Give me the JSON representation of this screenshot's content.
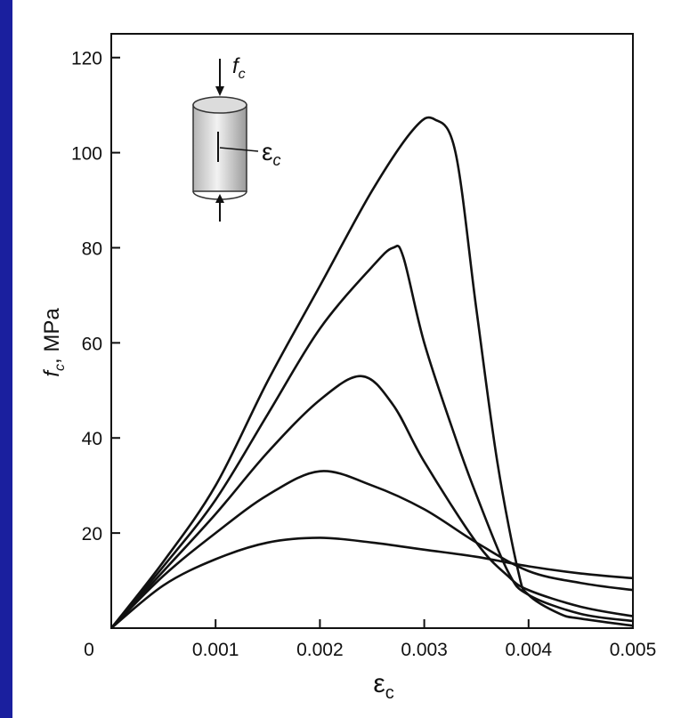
{
  "colors": {
    "background": "#1a1f9e",
    "paper": "#ffffff",
    "ink": "#111111"
  },
  "chart_data": {
    "type": "line",
    "title": "",
    "xlabel": "ε",
    "xlabel_sub": "c",
    "ylabel_main": "f",
    "ylabel_sub": "c",
    "ylabel_unit": ", MPa",
    "xlim": [
      0,
      0.005
    ],
    "ylim": [
      0,
      125
    ],
    "x_ticks": [
      0.001,
      0.002,
      0.003,
      0.004,
      0.005
    ],
    "x_tick_labels": [
      "0.001",
      "0.002",
      "0.003",
      "0.004",
      "0.005"
    ],
    "y_ticks": [
      20,
      40,
      60,
      80,
      100,
      120
    ],
    "y_tick_labels": [
      "20",
      "40",
      "60",
      "80",
      "100",
      "120"
    ],
    "origin_label": "0",
    "grid": false,
    "legend": "none",
    "series": [
      {
        "values": [
          [
            0,
            0
          ],
          [
            0.0005,
            9
          ],
          [
            0.001,
            14.5
          ],
          [
            0.0015,
            18
          ],
          [
            0.002,
            19
          ],
          [
            0.0025,
            18
          ],
          [
            0.003,
            16.5
          ],
          [
            0.0035,
            15
          ],
          [
            0.004,
            13
          ],
          [
            0.0045,
            11.5
          ],
          [
            0.005,
            10.5
          ]
        ]
      },
      {
        "values": [
          [
            0,
            0
          ],
          [
            0.0005,
            11
          ],
          [
            0.001,
            20
          ],
          [
            0.0015,
            28
          ],
          [
            0.002,
            33
          ],
          [
            0.0025,
            30
          ],
          [
            0.003,
            25
          ],
          [
            0.0035,
            18
          ],
          [
            0.004,
            12
          ],
          [
            0.0045,
            9.5
          ],
          [
            0.005,
            8
          ]
        ]
      },
      {
        "values": [
          [
            0,
            0
          ],
          [
            0.0005,
            12
          ],
          [
            0.001,
            24
          ],
          [
            0.0015,
            37
          ],
          [
            0.002,
            48
          ],
          [
            0.0024,
            53
          ],
          [
            0.0027,
            47
          ],
          [
            0.003,
            35
          ],
          [
            0.0035,
            18
          ],
          [
            0.0038,
            11
          ],
          [
            0.004,
            8
          ],
          [
            0.0045,
            4.5
          ],
          [
            0.005,
            2.5
          ]
        ]
      },
      {
        "values": [
          [
            0,
            0
          ],
          [
            0.0005,
            13
          ],
          [
            0.001,
            27
          ],
          [
            0.0015,
            45
          ],
          [
            0.002,
            63
          ],
          [
            0.0025,
            76
          ],
          [
            0.0027,
            80
          ],
          [
            0.0028,
            78
          ],
          [
            0.003,
            60
          ],
          [
            0.0033,
            40
          ],
          [
            0.0035,
            28
          ],
          [
            0.0038,
            12
          ],
          [
            0.004,
            7
          ],
          [
            0.0045,
            3
          ],
          [
            0.005,
            1.5
          ]
        ]
      },
      {
        "values": [
          [
            0,
            0
          ],
          [
            0.0005,
            14
          ],
          [
            0.001,
            30
          ],
          [
            0.0015,
            52
          ],
          [
            0.002,
            72
          ],
          [
            0.0025,
            92
          ],
          [
            0.0029,
            105
          ],
          [
            0.0031,
            107
          ],
          [
            0.0033,
            100
          ],
          [
            0.0035,
            67
          ],
          [
            0.0037,
            35
          ],
          [
            0.0039,
            12
          ],
          [
            0.004,
            7
          ],
          [
            0.0043,
            3
          ],
          [
            0.0045,
            2
          ],
          [
            0.005,
            0.5
          ]
        ]
      }
    ]
  },
  "inset": {
    "force_label_main": "f",
    "force_label_sub": "c",
    "strain_label_main": "ε",
    "strain_label_sub": "c"
  }
}
